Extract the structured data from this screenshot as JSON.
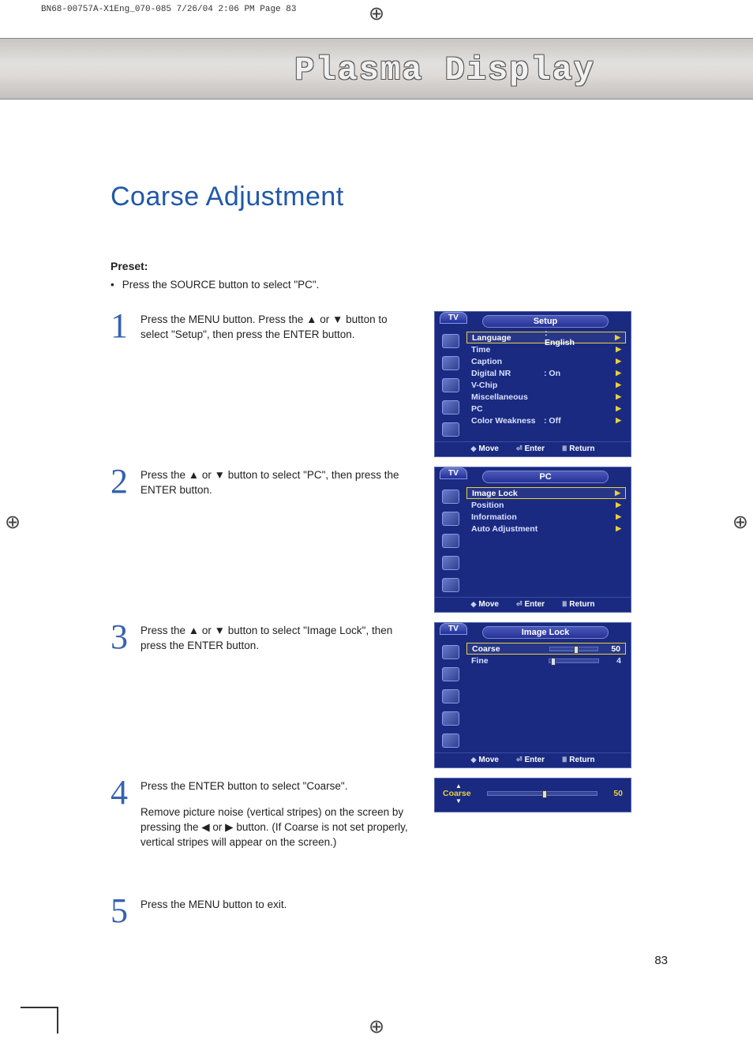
{
  "print_header": "BN68-00757A-X1Eng_070-085  7/26/04  2:06 PM  Page 83",
  "banner_title": "Plasma Display",
  "page_title": "Coarse Adjustment",
  "preset_label": "Preset:",
  "preset_text": "Press the SOURCE button to select \"PC\".",
  "steps": {
    "s1": {
      "num": "1",
      "text": "Press the MENU button. Press the ▲ or ▼ button to select \"Setup\", then press the ENTER button."
    },
    "s2": {
      "num": "2",
      "text": "Press the ▲ or ▼ button to select \"PC\", then press the ENTER button."
    },
    "s3": {
      "num": "3",
      "text": "Press the ▲ or ▼ button to select \"Image Lock\", then press the ENTER button."
    },
    "s4": {
      "num": "4",
      "text": "Press the ENTER button to select \"Coarse\".",
      "text2": "Remove picture noise (vertical stripes) on the screen by pressing the ◀ or ▶ button. (If Coarse is not set properly, vertical stripes will appear on the screen.)"
    },
    "s5": {
      "num": "5",
      "text": "Press the MENU button to exit."
    }
  },
  "osd": {
    "tab": "TV",
    "footer": {
      "move": "Move",
      "enter": "Enter",
      "return": "Return"
    },
    "setup": {
      "title": "Setup",
      "items": [
        {
          "label": "Language",
          "val": ": English",
          "hl": true
        },
        {
          "label": "Time"
        },
        {
          "label": "Caption"
        },
        {
          "label": "Digital NR",
          "val": ": On"
        },
        {
          "label": "V-Chip"
        },
        {
          "label": "Miscellaneous"
        },
        {
          "label": "PC"
        },
        {
          "label": "Color Weakness",
          "val": ": Off"
        }
      ]
    },
    "pc": {
      "title": "PC",
      "items": [
        {
          "label": "Image Lock",
          "hl": true
        },
        {
          "label": "Position"
        },
        {
          "label": "Information"
        },
        {
          "label": "Auto Adjustment"
        }
      ]
    },
    "imglock": {
      "title": "Image Lock",
      "items": [
        {
          "label": "Coarse",
          "num": "50",
          "slider": 50,
          "hl": true
        },
        {
          "label": "Fine",
          "num": "4",
          "slider": 4
        }
      ]
    },
    "slim": {
      "label": "Coarse",
      "num": "50"
    }
  },
  "page_number": "83"
}
